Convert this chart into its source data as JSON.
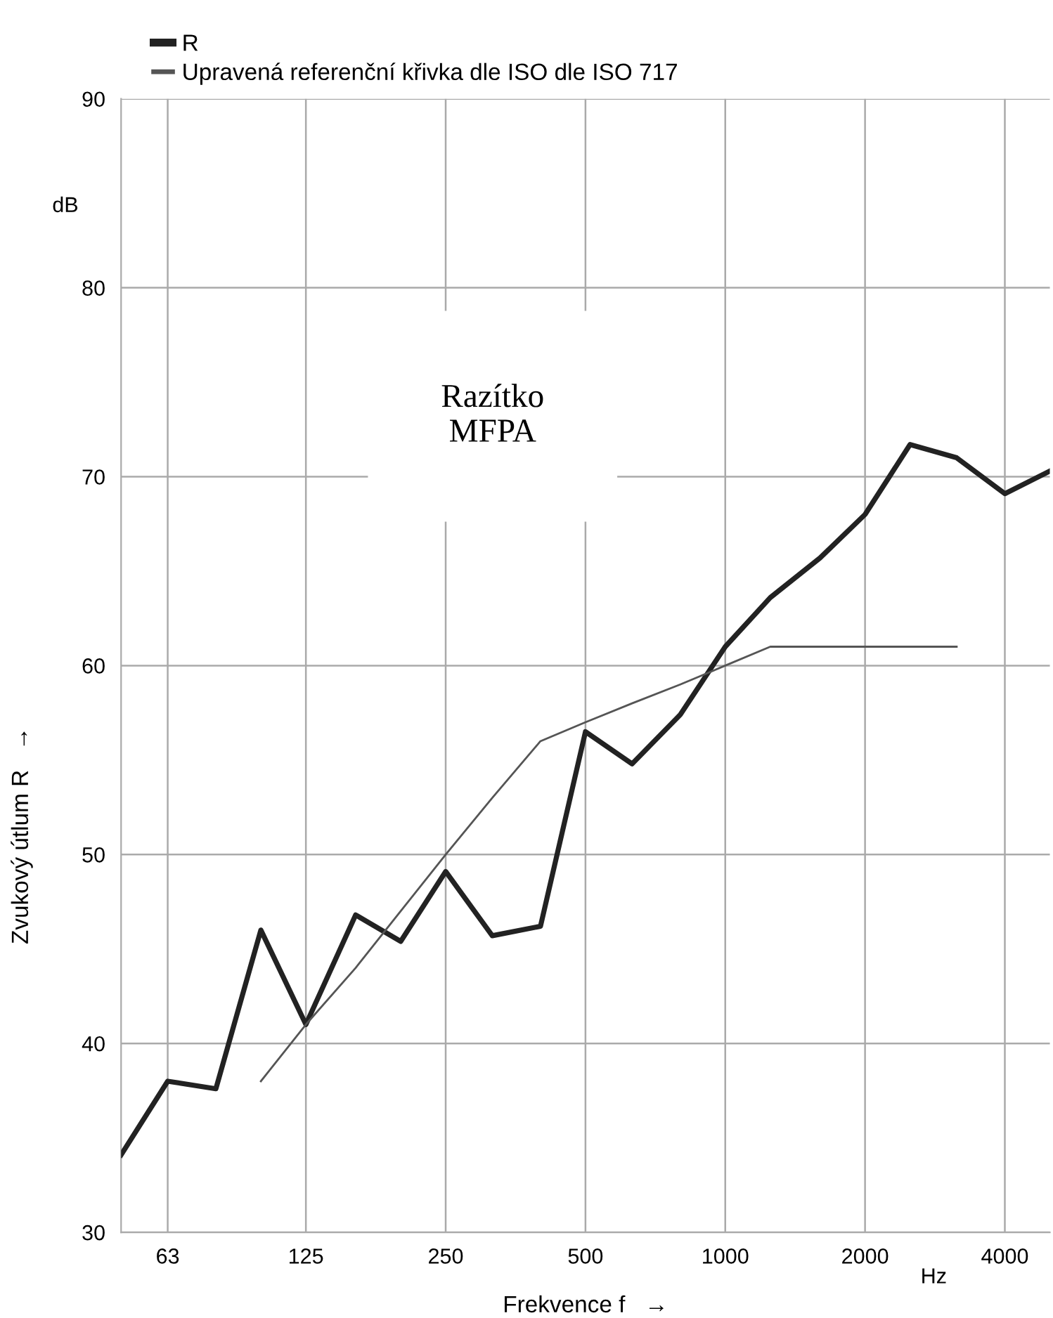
{
  "chart_data": {
    "type": "line",
    "xlabel": "Frekvence f   →",
    "ylabel": "Zvukový útlum R   →",
    "x": [
      50,
      63,
      80,
      100,
      125,
      160,
      200,
      250,
      315,
      400,
      500,
      630,
      800,
      1000,
      1250,
      1600,
      2000,
      2500,
      3150,
      4000,
      5000
    ],
    "series": [
      {
        "name": "R",
        "color": "#222222",
        "values": [
          34.1,
          38.0,
          37.6,
          46.0,
          41.0,
          46.8,
          45.4,
          49.1,
          45.7,
          46.2,
          56.5,
          54.8,
          57.4,
          61.0,
          63.6,
          65.7,
          68.0,
          71.7,
          71.0,
          69.1,
          70.3
        ]
      },
      {
        "name": "Upravená referenční křivka dle ISO dle ISO 717",
        "color": "#555555",
        "x": [
          100,
          125,
          160,
          200,
          250,
          315,
          400,
          500,
          630,
          800,
          1000,
          1250,
          1600,
          2000,
          2500,
          3150
        ],
        "values": [
          38,
          41,
          44,
          47,
          50,
          53,
          56,
          57,
          58,
          59,
          60,
          61,
          61,
          61,
          61,
          61
        ]
      }
    ],
    "log": "x",
    "xlim": [
      50,
      5000
    ],
    "xticks": [
      63,
      125,
      250,
      500,
      1000,
      2000,
      4000
    ],
    "ylim": [
      30,
      90
    ],
    "yticks": [
      30,
      40,
      50,
      60,
      70,
      80,
      90
    ],
    "grid": true,
    "legend": "top left",
    "annotations": [
      "dB",
      "Hz",
      "Razítko\nMFPA"
    ]
  }
}
